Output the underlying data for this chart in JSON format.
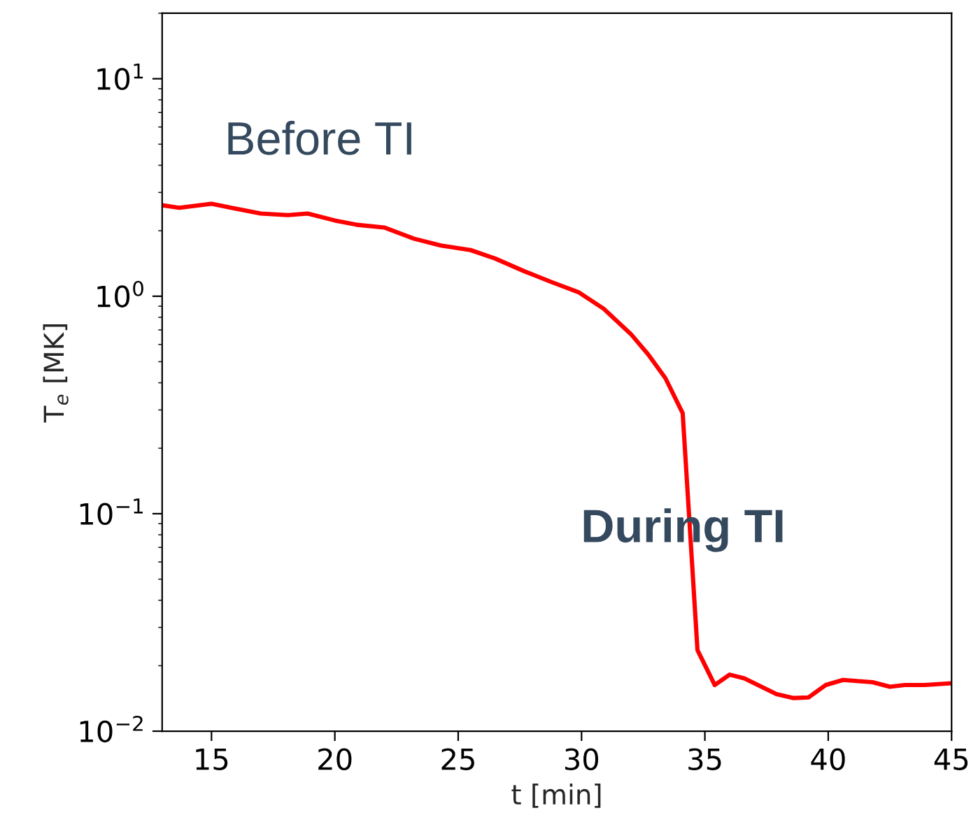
{
  "chart_data": {
    "type": "line",
    "xlabel": "t [min]",
    "ylabel": "T$_{e}$ [MK]",
    "log": "y",
    "xlim": [
      13,
      45
    ],
    "xticks": [
      15,
      20,
      25,
      30,
      35,
      40,
      45
    ],
    "ylim": [
      0.01,
      20
    ],
    "yticks": [
      {
        "value": 0.01,
        "label": "10$^{−2}$"
      },
      {
        "value": 0.1,
        "label": "10$^{−1}$"
      },
      {
        "value": 1,
        "label": "10$^{0}$"
      },
      {
        "value": 10,
        "label": "10$^{1}$"
      }
    ],
    "grid": false,
    "legend": false,
    "marker": "none",
    "line_style": "solid",
    "x": [
      13.0,
      13.7,
      15.0,
      15.8,
      17.0,
      18.1,
      18.9,
      20.0,
      20.9,
      22.0,
      23.2,
      24.3,
      25.5,
      26.5,
      27.7,
      28.8,
      29.9,
      30.9,
      32.0,
      32.7,
      33.4,
      34.1,
      34.7,
      35.4,
      36.0,
      36.6,
      37.9,
      38.6,
      39.2,
      39.9,
      40.6,
      41.8,
      42.5,
      43.1,
      43.9,
      45.0
    ],
    "series": [
      {
        "color": "#ff0000",
        "values": [
          2.62,
          2.55,
          2.66,
          2.55,
          2.4,
          2.36,
          2.4,
          2.23,
          2.13,
          2.07,
          1.84,
          1.71,
          1.63,
          1.49,
          1.3,
          1.16,
          1.04,
          0.875,
          0.67,
          0.54,
          0.42,
          0.29,
          0.0236,
          0.0163,
          0.0182,
          0.0175,
          0.0148,
          0.0142,
          0.0143,
          0.0163,
          0.0172,
          0.0168,
          0.016,
          0.0163,
          0.0163,
          0.0166
        ]
      }
    ],
    "annotations": [
      "Before TI",
      "During TI"
    ]
  }
}
